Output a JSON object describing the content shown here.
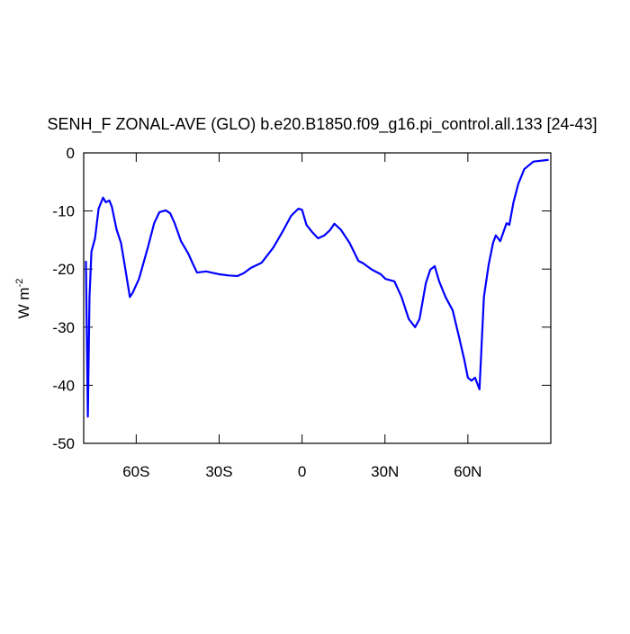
{
  "chart_data": {
    "type": "line",
    "title": "SENH_F ZONAL-AVE (GLO) b.e20.B1850.f09_g16.pi_control.all.133 [24-43]",
    "ylabel": {
      "base": "W m",
      "exponent": "-2"
    },
    "xlim": [
      -79,
      90
    ],
    "ylim": [
      -50,
      0
    ],
    "xticks": [
      {
        "value": -60,
        "label": "60S"
      },
      {
        "value": -30,
        "label": "30S"
      },
      0,
      {
        "value": 30,
        "label": "30N"
      },
      {
        "value": 60,
        "label": "60N"
      }
    ],
    "yticks": [
      0,
      -10,
      -20,
      -30,
      -40,
      -50
    ],
    "grid": false,
    "series": [
      {
        "color": "#0000ff",
        "x": [
          -78.2,
          -77.5,
          -76.9,
          -76.2,
          -74.9,
          -73.6,
          -72,
          -71,
          -69.7,
          -68.8,
          -67.1,
          -65.5,
          -63.9,
          -62.3,
          -61.3,
          -59,
          -55.8,
          -53.5,
          -51.6,
          -49.3,
          -47.7,
          -46.1,
          -43.8,
          -41.2,
          -39.6,
          -38,
          -34.7,
          -29.8,
          -26.6,
          -23.4,
          -21.1,
          -18.5,
          -14.6,
          -10.4,
          -7.1,
          -3.9,
          -1.3,
          0,
          1.6,
          3.6,
          5.8,
          8.1,
          10.1,
          11.7,
          14,
          17.2,
          20.4,
          22.1,
          25.3,
          28.5,
          30.2,
          33.4,
          36,
          38.6,
          40.9,
          42.5,
          44.8,
          46.4,
          48,
          49.6,
          51.9,
          54.5,
          56.8,
          58.7,
          60,
          61.3,
          62.6,
          64.2,
          65.8,
          67.5,
          69.1,
          70.1,
          71.7,
          74,
          75,
          76.5,
          78.2,
          80.4,
          83.7,
          89.2
        ],
        "values": [
          -18.6,
          -45.4,
          -24.8,
          -17,
          -14.7,
          -9.6,
          -7.7,
          -8.5,
          -8.2,
          -9.3,
          -13.2,
          -15.5,
          -20.1,
          -24.8,
          -24.1,
          -21.7,
          -16.3,
          -12.1,
          -10.2,
          -9.9,
          -10.4,
          -12.1,
          -15.2,
          -17.3,
          -19,
          -20.6,
          -20.4,
          -20.9,
          -21.1,
          -21.2,
          -20.7,
          -19.8,
          -18.9,
          -16.3,
          -13.6,
          -10.8,
          -9.6,
          -9.8,
          -12.4,
          -13.6,
          -14.7,
          -14.2,
          -13.3,
          -12.2,
          -13.2,
          -15.5,
          -18.6,
          -19,
          -20.1,
          -20.9,
          -21.7,
          -22.1,
          -24.8,
          -28.6,
          -30,
          -28.6,
          -22.4,
          -20.1,
          -19.5,
          -22.1,
          -24.8,
          -27.1,
          -31.7,
          -35.6,
          -38.7,
          -39.2,
          -38.7,
          -40.7,
          -24.8,
          -19.3,
          -15.5,
          -14.2,
          -15.2,
          -12.1,
          -12.4,
          -8.5,
          -5.4,
          -2.8,
          -1.5,
          -1.2
        ]
      }
    ]
  }
}
